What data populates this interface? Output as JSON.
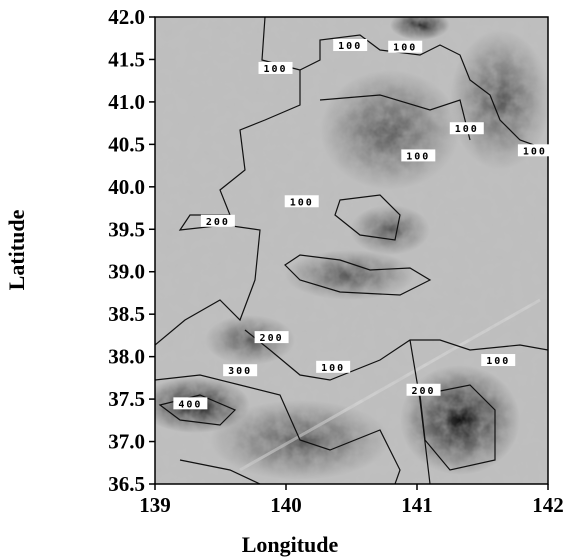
{
  "chart_data": {
    "type": "contour-map",
    "x_label": "Longitude",
    "y_label": "Latitude",
    "xlim": [
      139,
      142
    ],
    "ylim": [
      36.5,
      42
    ],
    "xticks": [
      139,
      140,
      141,
      142
    ],
    "yticks": [
      {
        "value": 36.5,
        "label": "36.5"
      },
      {
        "value": 37,
        "label": "37.0"
      },
      {
        "value": 37.5,
        "label": "37.5"
      },
      {
        "value": 38,
        "label": "38.0"
      },
      {
        "value": 38.5,
        "label": "38.5"
      },
      {
        "value": 39,
        "label": "39.0"
      },
      {
        "value": 39.5,
        "label": "39.5"
      },
      {
        "value": 40,
        "label": "40.0"
      },
      {
        "value": 40.5,
        "label": "40.5"
      },
      {
        "value": 41,
        "label": "41.0"
      },
      {
        "value": 41.5,
        "label": "41.5"
      },
      {
        "value": 42,
        "label": "42.0"
      }
    ],
    "contour_labels": [
      {
        "value": 100,
        "lon": 140.49,
        "lat": 41.67
      },
      {
        "value": 100,
        "lon": 140.91,
        "lat": 41.65
      },
      {
        "value": 100,
        "lon": 139.92,
        "lat": 41.4
      },
      {
        "value": 100,
        "lon": 141.38,
        "lat": 40.69
      },
      {
        "value": 100,
        "lon": 141.9,
        "lat": 40.43
      },
      {
        "value": 100,
        "lon": 141.01,
        "lat": 40.37
      },
      {
        "value": 100,
        "lon": 140.12,
        "lat": 39.83
      },
      {
        "value": 200,
        "lon": 139.48,
        "lat": 39.6
      },
      {
        "value": 200,
        "lon": 139.89,
        "lat": 38.23
      },
      {
        "value": 300,
        "lon": 139.65,
        "lat": 37.84
      },
      {
        "value": 100,
        "lon": 140.36,
        "lat": 37.88
      },
      {
        "value": 100,
        "lon": 141.62,
        "lat": 37.96
      },
      {
        "value": 200,
        "lon": 141.05,
        "lat": 37.61
      },
      {
        "value": 400,
        "lon": 139.27,
        "lat": 37.45
      }
    ]
  }
}
